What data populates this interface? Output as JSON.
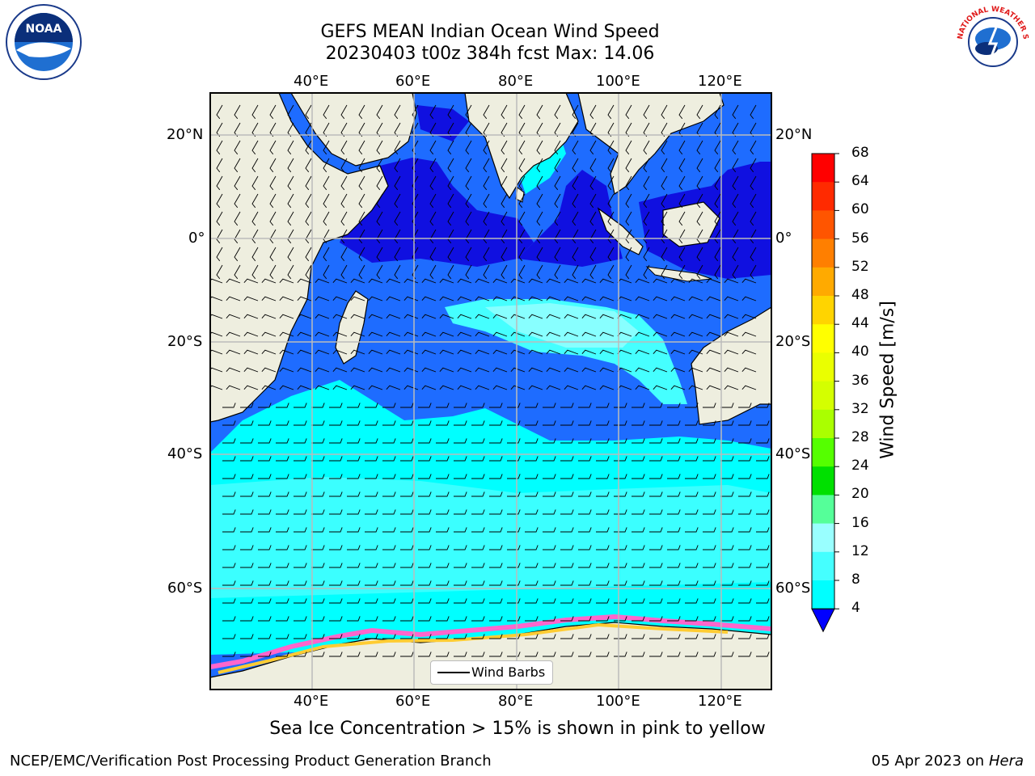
{
  "title_line1": "GEFS MEAN Indian Ocean Wind Speed",
  "title_line2": "20230403 t00z 384h fcst   Max: 14.06",
  "map": {
    "lon_ticks": [
      "40°E",
      "60°E",
      "80°E",
      "100°E",
      "120°E"
    ],
    "lat_ticks_left": [
      "20°N",
      "0°",
      "20°S",
      "40°S",
      "60°S"
    ],
    "lat_ticks_right": [
      "20°N",
      "0°",
      "20°S",
      "40°S",
      "60°S"
    ],
    "legend_label": "Wind Barbs",
    "colors": {
      "land": "#eeeedf",
      "speed_4_8": "#1e6cff",
      "speed_0_4": "#1010e0",
      "speed_8_12": "#00ffff",
      "speed_12_16": "#45ffff",
      "speed_16_20": "#99ffff",
      "sea_ice": "#ff66cc"
    }
  },
  "colorbar": {
    "title": "Wind Speed [m/s]",
    "labels": [
      "68",
      "64",
      "60",
      "56",
      "52",
      "48",
      "44",
      "40",
      "36",
      "32",
      "28",
      "24",
      "20",
      "16",
      "12",
      "8",
      "4"
    ],
    "colors": [
      "#ff0000",
      "#ff2a00",
      "#ff5500",
      "#ff7f00",
      "#ffaa00",
      "#ffd400",
      "#ffff00",
      "#eaff00",
      "#d4ff00",
      "#aaff00",
      "#55ff00",
      "#00e000",
      "#55ff99",
      "#99ffff",
      "#45ffff",
      "#00ffff",
      "#1e6cff"
    ],
    "extend_color": "#0000ff"
  },
  "subnote": "Sea Ice Concentration > 15% is shown in pink to yellow",
  "footer_left": "NCEP/EMC/Verification Post Processing Product Generation Branch",
  "footer_date": "05 Apr 2023 on ",
  "footer_machine": "Hera",
  "logos": {
    "noaa_text": "NOAA",
    "nws_text": "NATIONAL WEATHER SERVICE"
  }
}
